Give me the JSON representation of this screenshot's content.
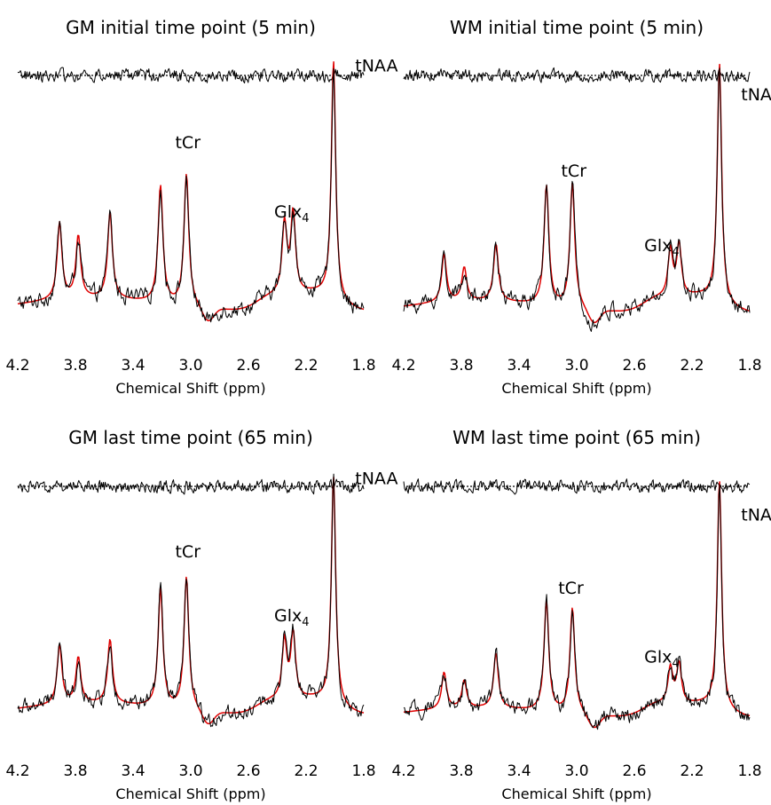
{
  "chart_data": [
    {
      "type": "line",
      "title": "GM initial time point (5 min)",
      "xlabel": "Chemical Shift (ppm)",
      "ylabel": "",
      "x_reversed": true,
      "xlim": [
        4.2,
        1.8
      ],
      "x_ticks": [
        "4.2",
        "3.8",
        "3.4",
        "3.0",
        "2.6",
        "2.2",
        "1.8"
      ],
      "grid": false,
      "colors": {
        "measured": "#000000",
        "fit": "#e00000",
        "residual": "#000000"
      },
      "annotations": [
        {
          "text": "tCr",
          "x": 3.02,
          "y": 0.76
        },
        {
          "text": "Glx",
          "sub": "4",
          "x": 2.3,
          "y": 0.47
        },
        {
          "text": "tNAA",
          "x": 1.86,
          "y": 1.08
        }
      ],
      "peaks": [
        {
          "x": 3.91,
          "y": 0.32
        },
        {
          "x": 3.78,
          "y": 0.26
        },
        {
          "x": 3.56,
          "y": 0.36
        },
        {
          "x": 3.21,
          "y": 0.49
        },
        {
          "x": 3.03,
          "y": 0.55
        },
        {
          "x": 2.35,
          "y": 0.3
        },
        {
          "x": 2.29,
          "y": 0.34
        },
        {
          "x": 2.01,
          "y": 1.0
        }
      ]
    },
    {
      "type": "line",
      "title": "WM initial time point (5 min)",
      "xlabel": "Chemical Shift (ppm)",
      "ylabel": "",
      "x_reversed": true,
      "xlim": [
        4.2,
        1.8
      ],
      "x_ticks": [
        "4.2",
        "3.8",
        "3.4",
        "3.0",
        "2.6",
        "2.2",
        "1.8"
      ],
      "grid": false,
      "colors": {
        "measured": "#000000",
        "fit": "#e00000",
        "residual": "#000000"
      },
      "annotations": [
        {
          "text": "tCr",
          "x": 3.02,
          "y": 0.64
        },
        {
          "text": "Glx",
          "sub": "4",
          "x": 2.41,
          "y": 0.33
        },
        {
          "text": "tNAA",
          "x": 1.86,
          "y": 0.96
        }
      ],
      "peaks": [
        {
          "x": 3.92,
          "y": 0.2
        },
        {
          "x": 3.78,
          "y": 0.14
        },
        {
          "x": 3.56,
          "y": 0.24
        },
        {
          "x": 3.21,
          "y": 0.5
        },
        {
          "x": 3.03,
          "y": 0.52
        },
        {
          "x": 2.35,
          "y": 0.2
        },
        {
          "x": 2.29,
          "y": 0.22
        },
        {
          "x": 2.01,
          "y": 1.0
        }
      ]
    },
    {
      "type": "line",
      "title": "GM last time point (65 min)",
      "xlabel": "Chemical Shift (ppm)",
      "ylabel": "",
      "x_reversed": true,
      "xlim": [
        4.2,
        1.8
      ],
      "x_ticks": [
        "4.2",
        "3.8",
        "3.4",
        "3.0",
        "2.6",
        "2.2",
        "1.8"
      ],
      "grid": false,
      "colors": {
        "measured": "#000000",
        "fit": "#e00000",
        "residual": "#000000"
      },
      "annotations": [
        {
          "text": "tCr",
          "x": 3.02,
          "y": 0.76
        },
        {
          "text": "Glx",
          "sub": "4",
          "x": 2.3,
          "y": 0.48
        },
        {
          "text": "tNAA",
          "x": 1.86,
          "y": 1.08
        }
      ],
      "peaks": [
        {
          "x": 3.91,
          "y": 0.26
        },
        {
          "x": 3.78,
          "y": 0.2
        },
        {
          "x": 3.56,
          "y": 0.28
        },
        {
          "x": 3.21,
          "y": 0.52
        },
        {
          "x": 3.03,
          "y": 0.58
        },
        {
          "x": 2.35,
          "y": 0.26
        },
        {
          "x": 2.29,
          "y": 0.29
        },
        {
          "x": 2.01,
          "y": 1.0
        }
      ]
    },
    {
      "type": "line",
      "title": "WM last time point (65 min)",
      "xlabel": "Chemical Shift (ppm)",
      "ylabel": "",
      "x_reversed": true,
      "xlim": [
        4.2,
        1.8
      ],
      "x_ticks": [
        "4.2",
        "3.8",
        "3.4",
        "3.0",
        "2.6",
        "2.2",
        "1.8"
      ],
      "grid": false,
      "colors": {
        "measured": "#000000",
        "fit": "#e00000",
        "residual": "#000000"
      },
      "annotations": [
        {
          "text": "tCr",
          "x": 3.04,
          "y": 0.6
        },
        {
          "text": "Glx",
          "sub": "4",
          "x": 2.41,
          "y": 0.3
        },
        {
          "text": "tNAA",
          "x": 1.86,
          "y": 0.92
        }
      ],
      "peaks": [
        {
          "x": 3.92,
          "y": 0.16
        },
        {
          "x": 3.78,
          "y": 0.12
        },
        {
          "x": 3.56,
          "y": 0.24
        },
        {
          "x": 3.21,
          "y": 0.48
        },
        {
          "x": 3.03,
          "y": 0.46
        },
        {
          "x": 2.35,
          "y": 0.16
        },
        {
          "x": 2.29,
          "y": 0.18
        },
        {
          "x": 2.01,
          "y": 1.0
        }
      ]
    }
  ]
}
